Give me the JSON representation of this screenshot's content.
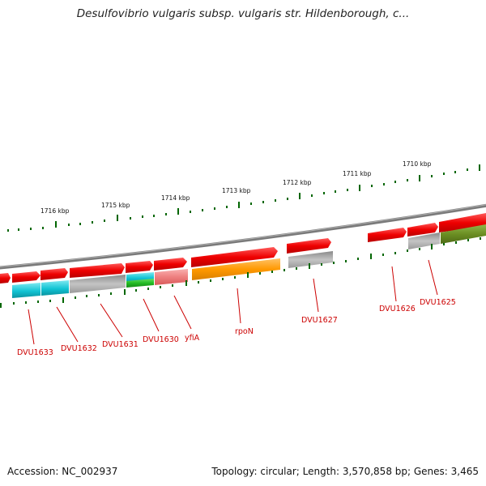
{
  "title": "Desulfovibrio vulgaris subsp. vulgaris str. Hildenborough, c...",
  "footer": {
    "accession": "Accession: NC_002937",
    "summary": "Topology: circular; Length: 3,570,858 bp; Genes: 3,465"
  },
  "ruler_labels": [
    "1716 kbp",
    "1715 kbp",
    "1714 kbp",
    "1713 kbp",
    "1712 kbp",
    "1711 kbp",
    "1710 kbp"
  ],
  "gene_labels": [
    "DVU1633",
    "DVU1632",
    "DVU1631",
    "DVU1630",
    "yfiA",
    "rpoN",
    "DVU1627",
    "DVU1626",
    "DVU1625"
  ],
  "colors": {
    "red": "#ee0000",
    "cyan": "#11c4d4",
    "gray": "#aaaaaa",
    "green": "#22bb22",
    "pink": "#ee7f7f",
    "orange": "#ff9900",
    "olive": "#6b8e23",
    "tick": "#006600",
    "backbone": "#808080"
  }
}
